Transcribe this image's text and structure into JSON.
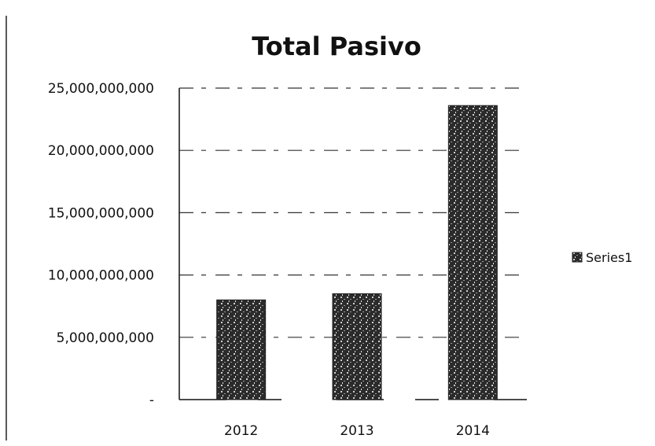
{
  "chart_data": {
    "type": "bar",
    "title": "Total Pasivo",
    "xlabel": "",
    "ylabel": "",
    "categories": [
      "2012",
      "2013",
      "2014"
    ],
    "series": [
      {
        "name": "Series1",
        "values": [
          8000000000,
          8500000000,
          23600000000
        ]
      }
    ],
    "ylim": [
      0,
      25000000000
    ],
    "yticks": [
      {
        "value": 0,
        "label": "-"
      },
      {
        "value": 5000000000,
        "label": "5,000,000,000"
      },
      {
        "value": 10000000000,
        "label": "10,000,000,000"
      },
      {
        "value": 15000000000,
        "label": "15,000,000,000"
      },
      {
        "value": 20000000000,
        "label": "20,000,000,000"
      },
      {
        "value": 25000000000,
        "label": "25,000,000,000"
      }
    ],
    "grid": true,
    "legend_position": "right",
    "colors": {
      "bar": "#2b2b2b",
      "grid": "#333333",
      "axis": "#111111"
    }
  }
}
